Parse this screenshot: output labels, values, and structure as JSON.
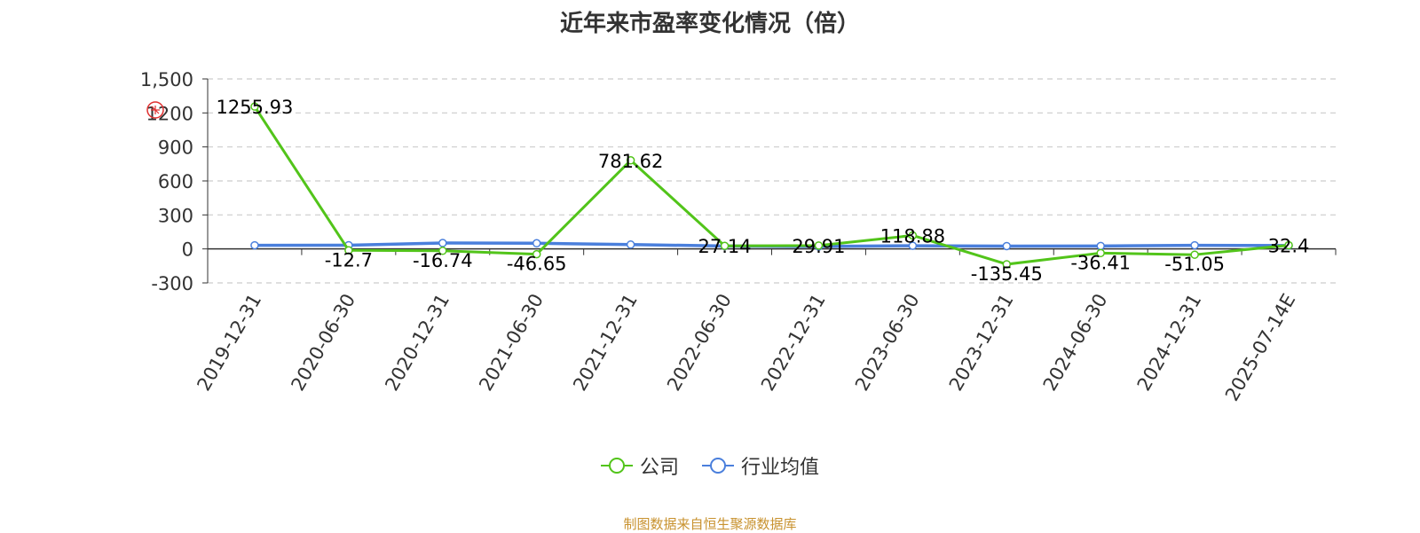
{
  "title": "近年来市盈率变化情况（倍）",
  "source_note": "制图数据来自恒生聚源数据库",
  "chart_data": {
    "type": "line",
    "categories": [
      "2019-12-31",
      "2020-06-30",
      "2020-12-31",
      "2021-06-30",
      "2021-12-31",
      "2022-06-30",
      "2022-12-31",
      "2023-06-30",
      "2023-12-31",
      "2024-06-30",
      "2024-12-31",
      "2025-07-14E"
    ],
    "ylim": [
      -300,
      1500
    ],
    "y_ticks": [
      -300,
      0,
      300,
      600,
      900,
      1200,
      1500
    ],
    "y_tick_labels": [
      "-300",
      "0",
      "300",
      "600",
      "900",
      "1200",
      "1,500"
    ],
    "grid": true,
    "legend_position": "bottom",
    "series": [
      {
        "name": "公司",
        "color": "#52c41a",
        "values": [
          1255.93,
          -12.7,
          -16.74,
          -46.65,
          781.62,
          27.14,
          29.91,
          118.88,
          -135.45,
          -36.41,
          -51.05,
          32.4
        ],
        "labels": [
          "1255.93",
          "-12.7",
          "-16.74",
          "-46.65",
          "781.62",
          "27.14",
          "29.91",
          "118.88",
          "-135.45",
          "-36.41",
          "-51.05",
          "32.4"
        ]
      },
      {
        "name": "行业均值",
        "color": "#4a7fdc",
        "values": [
          32,
          33,
          52,
          50,
          38,
          26,
          22,
          28,
          25,
          26,
          32,
          30
        ]
      }
    ]
  }
}
